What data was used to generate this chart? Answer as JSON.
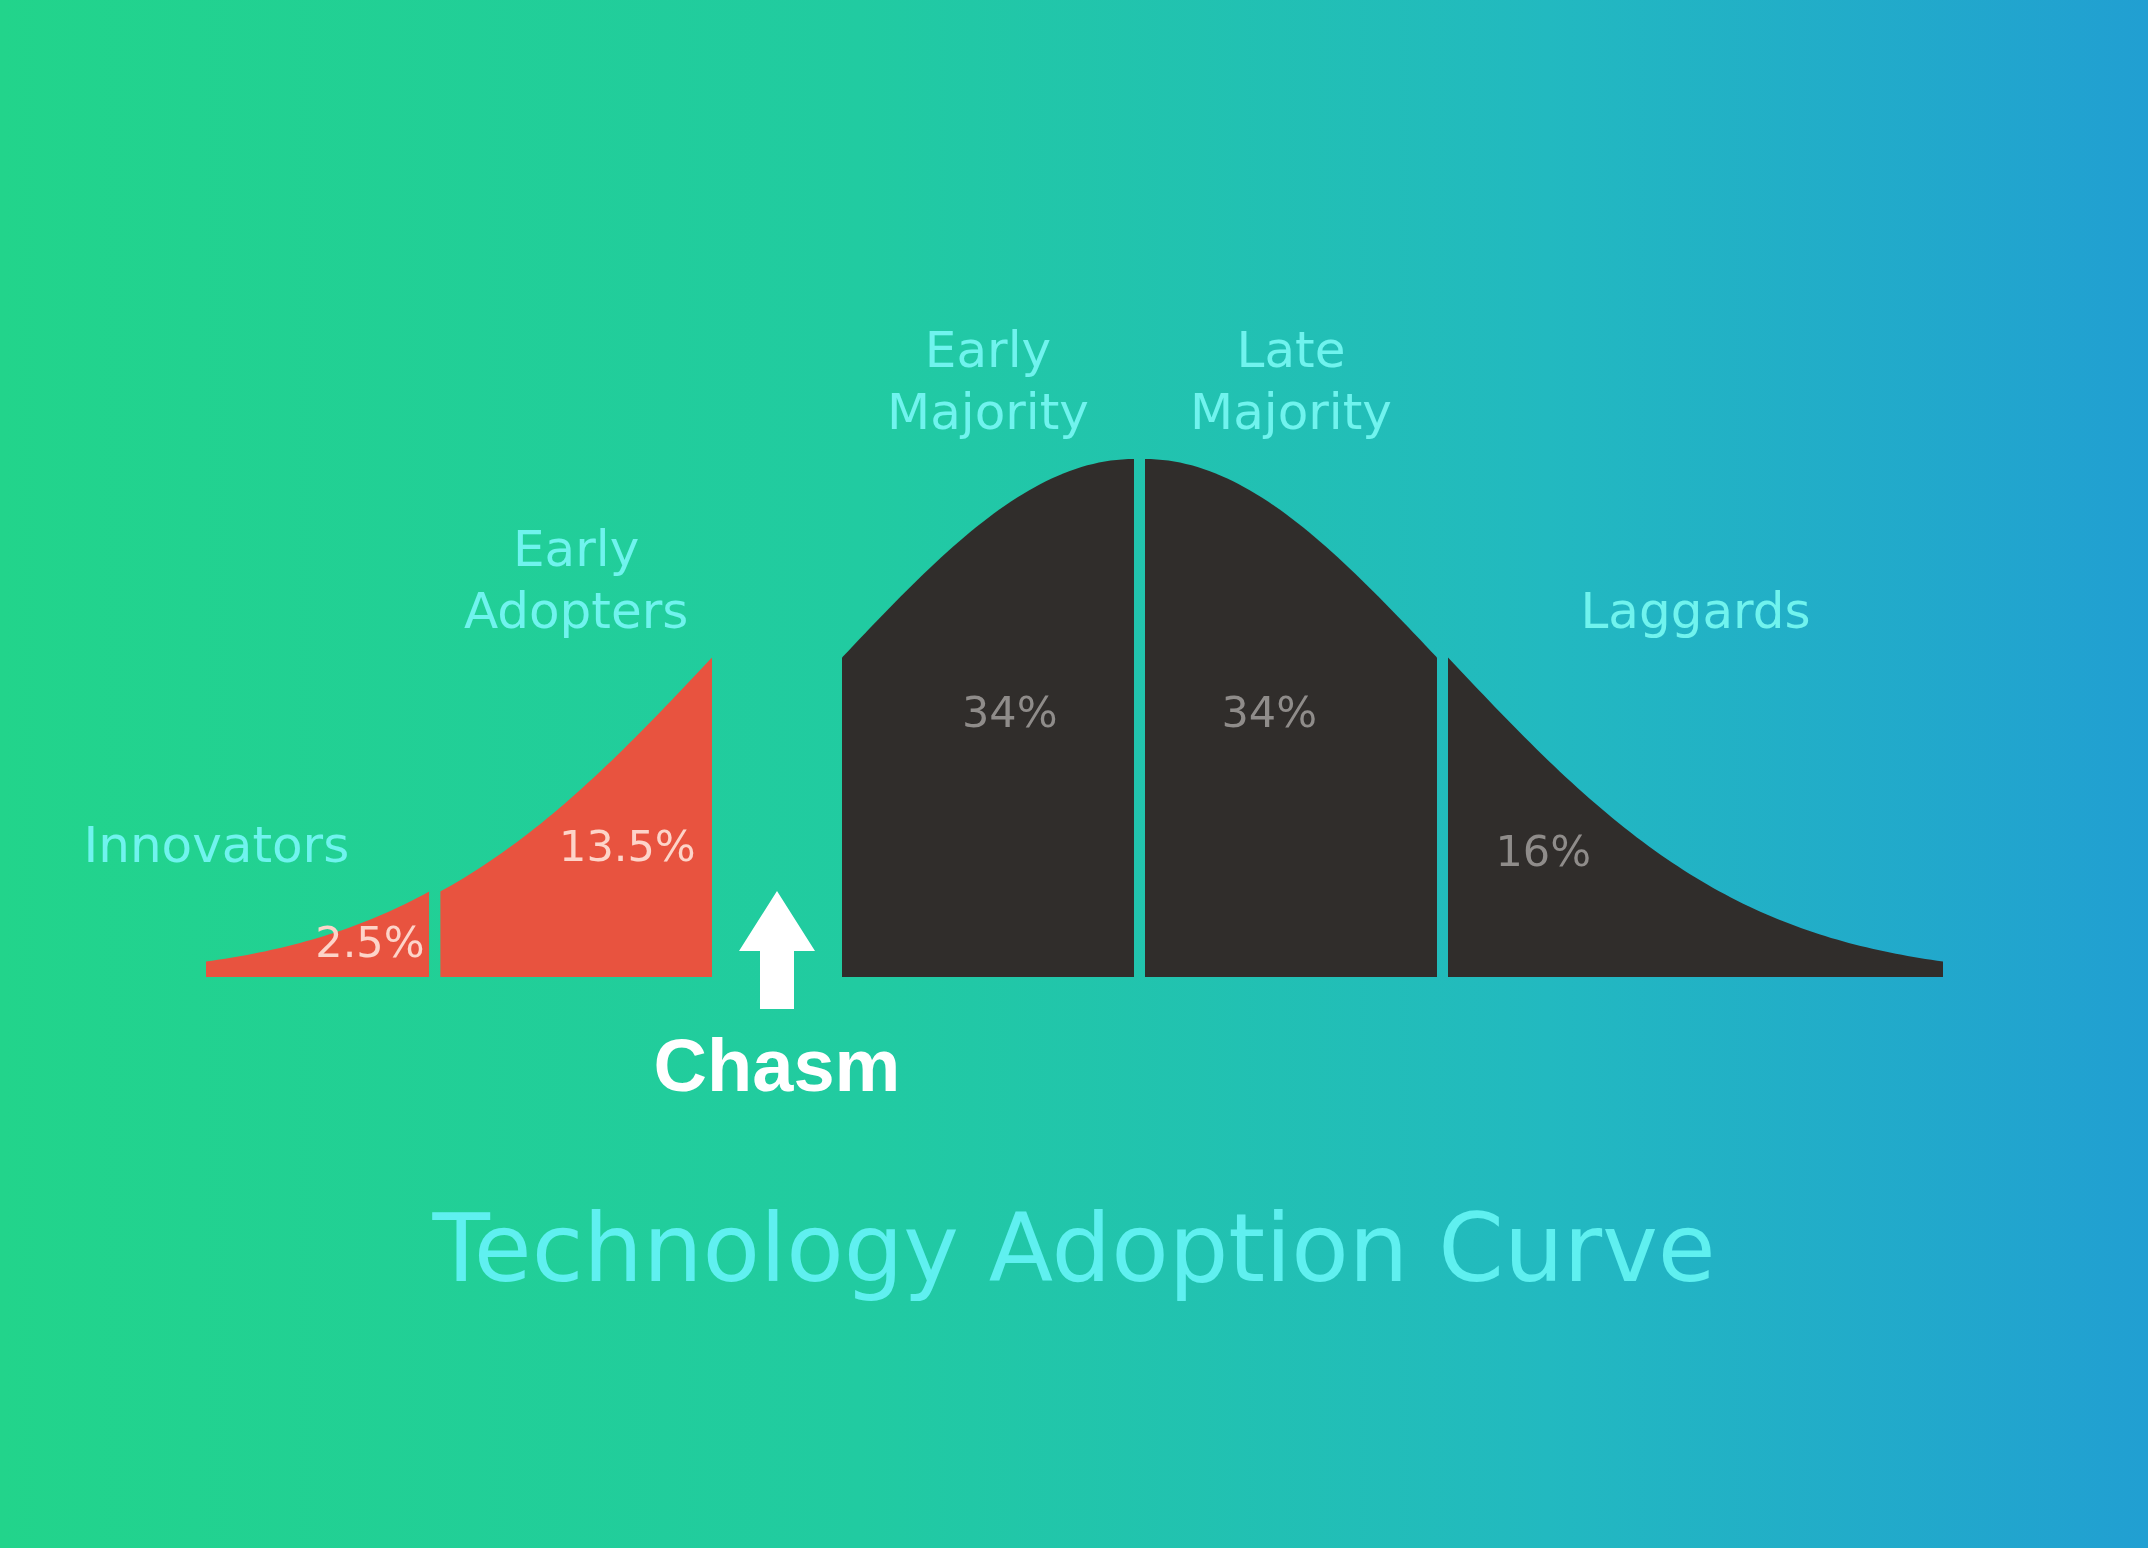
{
  "chart_data": {
    "type": "other",
    "title": "Technology Adoption Curve",
    "categories": [
      "Innovators",
      "Early Adopters",
      "Early Majority",
      "Late Majority",
      "Laggards"
    ],
    "values": [
      2.5,
      13.5,
      34,
      34,
      16
    ],
    "colors": [
      "#e8533f",
      "#e8533f",
      "#302d2b",
      "#302d2b",
      "#302d2b"
    ],
    "value_labels": [
      "2.5%",
      "13.5%",
      "34%",
      "34%",
      "16%"
    ],
    "annotations": [
      "Chasm"
    ]
  }
}
